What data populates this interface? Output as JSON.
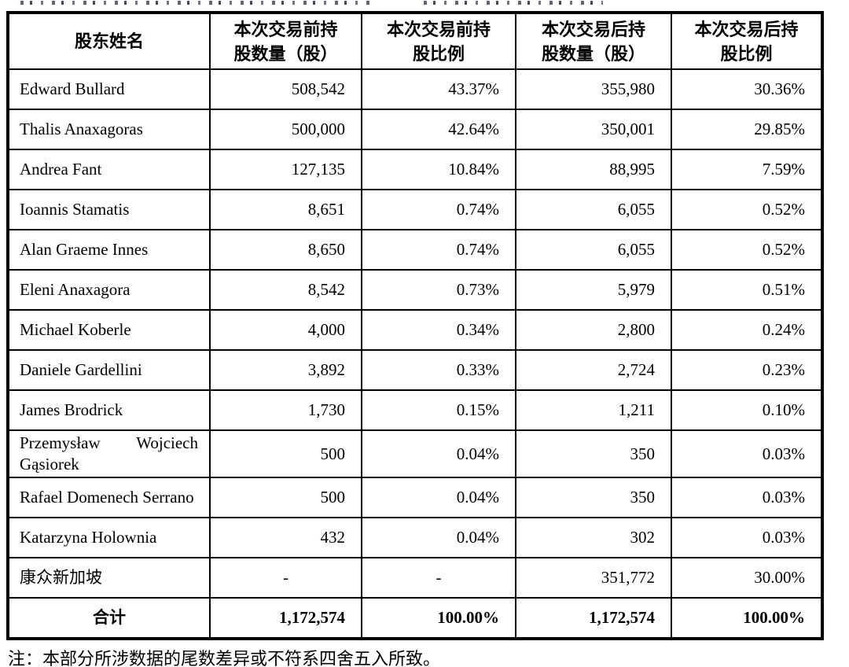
{
  "table": {
    "columns": [
      {
        "key": "name",
        "label": "股东姓名"
      },
      {
        "key": "pre_shares",
        "label": "本次交易前持\n股数量（股）"
      },
      {
        "key": "pre_ratio",
        "label": "本次交易前持\n股比例"
      },
      {
        "key": "post_shares",
        "label": "本次交易后持\n股数量（股）"
      },
      {
        "key": "post_ratio",
        "label": "本次交易后持\n股比例"
      }
    ],
    "rows": [
      {
        "name": "Edward Bullard",
        "pre_shares": "508,542",
        "pre_ratio": "43.37%",
        "post_shares": "355,980",
        "post_ratio": "30.36%"
      },
      {
        "name": "Thalis Anaxagoras",
        "pre_shares": "500,000",
        "pre_ratio": "42.64%",
        "post_shares": "350,001",
        "post_ratio": "29.85%"
      },
      {
        "name": "Andrea Fant",
        "pre_shares": "127,135",
        "pre_ratio": "10.84%",
        "post_shares": "88,995",
        "post_ratio": "7.59%"
      },
      {
        "name": "Ioannis Stamatis",
        "pre_shares": "8,651",
        "pre_ratio": "0.74%",
        "post_shares": "6,055",
        "post_ratio": "0.52%"
      },
      {
        "name": "Alan Graeme Innes",
        "pre_shares": "8,650",
        "pre_ratio": "0.74%",
        "post_shares": "6,055",
        "post_ratio": "0.52%"
      },
      {
        "name": "Eleni Anaxagora",
        "pre_shares": "8,542",
        "pre_ratio": "0.73%",
        "post_shares": "5,979",
        "post_ratio": "0.51%"
      },
      {
        "name": "Michael Koberle",
        "pre_shares": "4,000",
        "pre_ratio": "0.34%",
        "post_shares": "2,800",
        "post_ratio": "0.24%"
      },
      {
        "name": "Daniele Gardellini",
        "pre_shares": "3,892",
        "pre_ratio": "0.33%",
        "post_shares": "2,724",
        "post_ratio": "0.23%"
      },
      {
        "name": "James Brodrick",
        "pre_shares": "1,730",
        "pre_ratio": "0.15%",
        "post_shares": "1,211",
        "post_ratio": "0.10%"
      },
      {
        "name": "Przemysław Wojciech Gąsiorek",
        "pre_shares": "500",
        "pre_ratio": "0.04%",
        "post_shares": "350",
        "post_ratio": "0.03%"
      },
      {
        "name": "Rafael Domenech Serrano",
        "pre_shares": "500",
        "pre_ratio": "0.04%",
        "post_shares": "350",
        "post_ratio": "0.03%"
      },
      {
        "name": "Katarzyna Holownia",
        "pre_shares": "432",
        "pre_ratio": "0.04%",
        "post_shares": "302",
        "post_ratio": "0.03%"
      },
      {
        "name": "康众新加坡",
        "pre_shares": "-",
        "pre_ratio": "-",
        "post_shares": "351,772",
        "post_ratio": "30.00%"
      }
    ],
    "total": {
      "name": "合计",
      "pre_shares": "1,172,574",
      "pre_ratio": "100.00%",
      "post_shares": "1,172,574",
      "post_ratio": "100.00%"
    }
  },
  "note": "注：本部分所涉数据的尾数差异或不符系四舍五入所致。"
}
